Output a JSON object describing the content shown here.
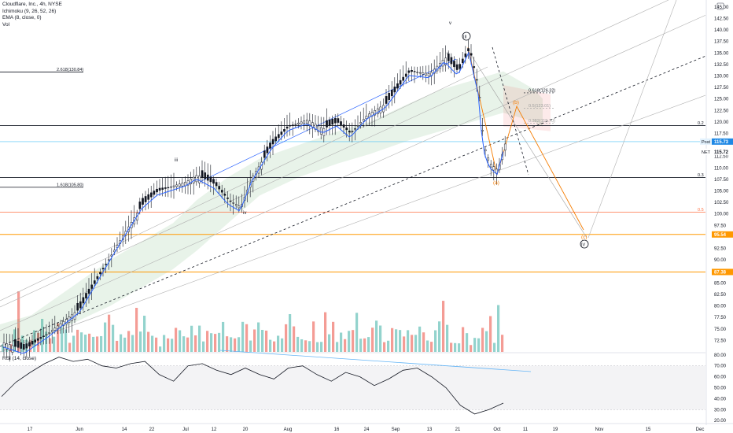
{
  "header": {
    "title": "Cloudflare, Inc., 4h, NYSE",
    "indicators": [
      "Ichimoku (9, 26, 52, 26)",
      "EMA (8, close, 0)",
      "Vol"
    ]
  },
  "rsi_label": "RSI (14, close)",
  "colors": {
    "up": "#26a69a",
    "down": "#131722",
    "ema": "#2962ff",
    "cloud_green": "#43a047",
    "cloud_red": "#ef5350",
    "fib_orange": "#ff9800",
    "wave_orange": "#f57c00",
    "current_price_bg": "#1e88e5",
    "level_95": "#ff9800",
    "level_87": "#ff9800"
  },
  "chart_data": {
    "type": "candlestick",
    "title": "Cloudflare, Inc., 4h, NYSE",
    "symbol": "NET",
    "x_ticks": [
      "17",
      "Jun",
      "14",
      "22",
      "Jul",
      "12",
      "20",
      "Aug",
      "16",
      "24",
      "Sep",
      "13",
      "21",
      "Oct",
      "11",
      "19",
      "Nov",
      "15",
      "Dec"
    ],
    "y_axis_labels": [
      "145.00",
      "142.50",
      "140.00",
      "137.50",
      "135.00",
      "132.50",
      "130.00",
      "127.50",
      "125.00",
      "122.50",
      "120.00",
      "117.50",
      "112.50",
      "110.00",
      "107.50",
      "105.00",
      "102.50",
      "100.00",
      "97.50",
      "92.50",
      "90.00",
      "85.00",
      "82.50",
      "80.00",
      "77.50",
      "75.00",
      "72.50"
    ],
    "y_range": [
      70,
      146
    ],
    "price_tags": [
      {
        "label": "Post",
        "value": "115.73"
      },
      {
        "label": "NET",
        "value": "115.72"
      },
      {
        "label": "",
        "value": "95.54"
      },
      {
        "label": "",
        "value": "87.38"
      }
    ],
    "price_series_approx": [
      {
        "t": "17",
        "close": 72.0
      },
      {
        "t": "Jun",
        "close": 79.5
      },
      {
        "t": "14",
        "close": 96.0
      },
      {
        "t": "22",
        "close": 104.5
      },
      {
        "t": "Jul",
        "close": 107.0
      },
      {
        "t": "12",
        "close": 106.5
      },
      {
        "t": "20",
        "close": 101.5
      },
      {
        "t": "Aug",
        "close": 119.0
      },
      {
        "t": "16",
        "close": 119.5
      },
      {
        "t": "24",
        "close": 121.5
      },
      {
        "t": "Sep",
        "close": 127.0
      },
      {
        "t": "13",
        "close": 130.5
      },
      {
        "t": "21",
        "close": 136.0
      },
      {
        "t": "Oct-early",
        "close": 109.0
      },
      {
        "t": "Oct",
        "close": 115.7
      }
    ],
    "fib_levels": [
      {
        "label": "2.618(130.84)",
        "value": 130.84
      },
      {
        "label": "1.618(105.80)",
        "value": 105.8
      },
      {
        "label": "0.618(126.32)",
        "value": 126.32
      },
      {
        "label": "0.5(123.01)",
        "value": 123.01
      },
      {
        "label": "0.382(119.70)",
        "value": 119.7
      },
      {
        "label": "0.2",
        "value": 119.2
      },
      {
        "label": "0.3",
        "value": 107.9
      },
      {
        "label": "0.5",
        "value": 100.4
      }
    ],
    "wave_labels": [
      "v",
      "III",
      "iii",
      "iv",
      "v",
      "(a)",
      "(b)",
      "(c)",
      "IV"
    ],
    "rsi": {
      "name": "RSI (14, close)",
      "y_axis_labels": [
        "80.00",
        "70.00",
        "60.00",
        "50.00",
        "40.00",
        "30.00",
        "20.00"
      ],
      "y_range": [
        18,
        82
      ],
      "values": [
        42,
        55,
        64,
        72,
        78,
        74,
        76,
        70,
        68,
        72,
        74,
        62,
        56,
        70,
        72,
        66,
        62,
        68,
        62,
        58,
        68,
        70,
        62,
        56,
        64,
        60,
        52,
        58,
        66,
        68,
        60,
        50,
        34,
        26,
        30,
        36
      ]
    },
    "volume_series_approx": [
      28,
      22,
      18,
      45,
      30,
      25,
      40,
      32,
      48,
      36,
      55,
      30,
      42,
      38,
      60,
      44,
      36,
      33,
      46,
      52,
      39,
      30,
      28,
      50,
      41,
      35,
      56,
      62,
      40,
      34,
      44,
      30,
      38,
      27,
      48,
      58,
      85,
      40
    ]
  }
}
